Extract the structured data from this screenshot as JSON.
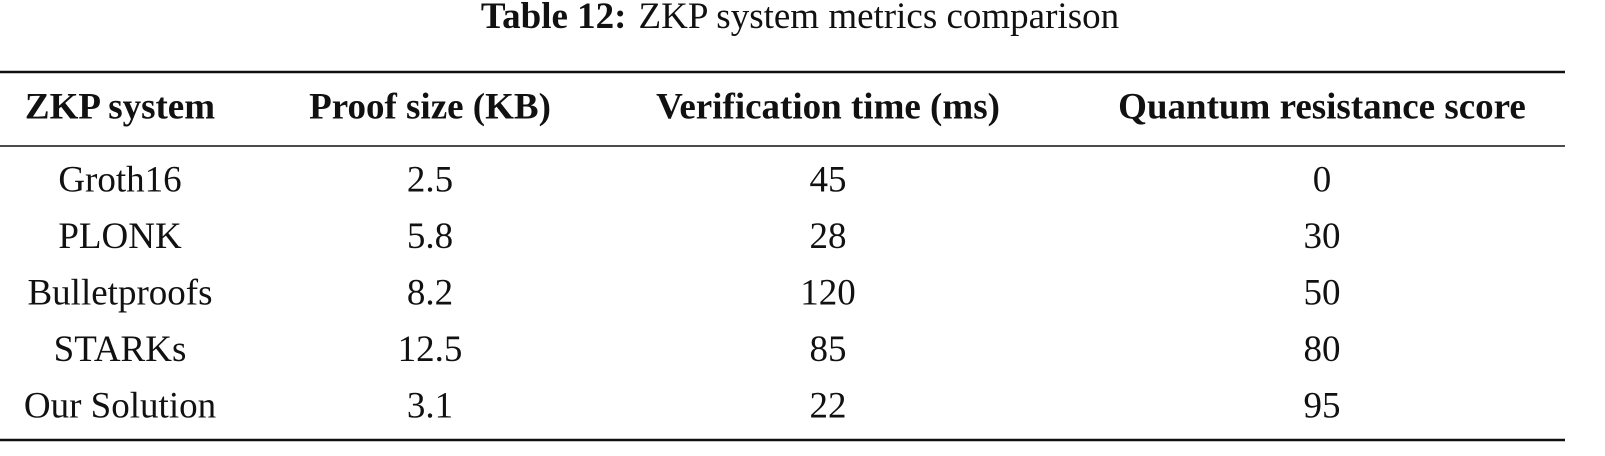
{
  "caption": {
    "label": "Table 12:",
    "text": "ZKP system metrics comparison"
  },
  "table": {
    "headers": [
      "ZKP system",
      "Proof size (KB)",
      "Verification time (ms)",
      "Quantum resistance score"
    ],
    "rows": [
      [
        "Groth16",
        "2.5",
        "45",
        "0"
      ],
      [
        "PLONK",
        "5.8",
        "28",
        "30"
      ],
      [
        "Bulletproofs",
        "8.2",
        "120",
        "50"
      ],
      [
        "STARKs",
        "12.5",
        "85",
        "80"
      ],
      [
        "Our Solution",
        "3.1",
        "22",
        "95"
      ]
    ]
  }
}
